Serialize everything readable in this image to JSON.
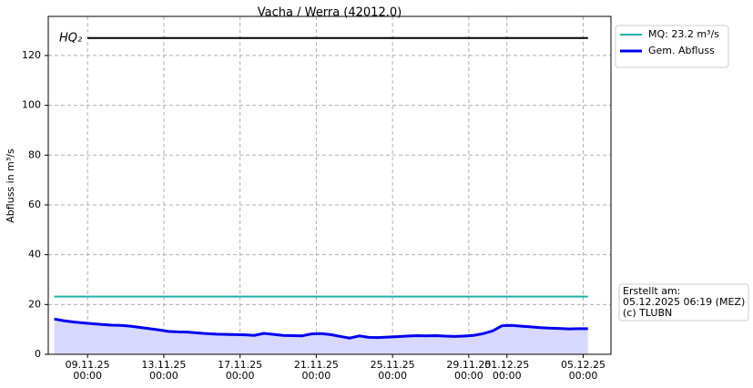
{
  "chart_data": {
    "type": "line",
    "title": "Vacha / Werra (42012.0)",
    "y_label": "Abfluss in m³/s",
    "ylim": [
      0,
      135.7
    ],
    "yticks": [
      0,
      20,
      40,
      60,
      80,
      100,
      120
    ],
    "xlim": [
      "06.11.25 22:30",
      "06.12.25 11:00"
    ],
    "xticks": [
      {
        "value": "09.11.25 00:00",
        "label": "09.11.25\n00:00"
      },
      {
        "value": "13.11.25 00:00",
        "label": "13.11.25\n00:00"
      },
      {
        "value": "17.11.25 00:00",
        "label": "17.11.25\n00:00"
      },
      {
        "value": "21.11.25 00:00",
        "label": "21.11.25\n00:00"
      },
      {
        "value": "25.11.25 00:00",
        "label": "25.11.25\n00:00"
      },
      {
        "value": "29.11.25 00:00",
        "label": "29.11.25\n00:00"
      },
      {
        "value": "01.12.25 00:00",
        "label": "01.12.25\n00:00"
      },
      {
        "value": "05.12.25 00:00",
        "label": "05.12.25\n00:00"
      }
    ],
    "grid": true,
    "legend": "outside-upper-right",
    "series": [
      {
        "name": "HQ₂",
        "color": "#000000",
        "legend": false,
        "x": [
          "09.11.25 00:00",
          "05.12.25 06:00"
        ],
        "values": [
          127,
          127
        ]
      },
      {
        "name": "MQ: 23.2 m³/s",
        "color": "#20b2aa",
        "x": [
          "07.11.25 06:00",
          "05.12.25 06:00"
        ],
        "values": [
          23.2,
          23.2
        ]
      },
      {
        "name": "Gem. Abfluss",
        "color": "#0000ee",
        "fill": "#d8d8ff",
        "x": [
          "07.11.25 06:00",
          "07.11.25 18:00",
          "08.11.25 06:00",
          "08.11.25 18:00",
          "09.11.25 06:00",
          "09.11.25 18:00",
          "10.11.25 06:00",
          "10.11.25 18:00",
          "11.11.25 06:00",
          "11.11.25 18:00",
          "12.11.25 06:00",
          "12.11.25 18:00",
          "13.11.25 06:00",
          "13.11.25 18:00",
          "14.11.25 06:00",
          "14.11.25 18:00",
          "15.11.25 06:00",
          "15.11.25 18:00",
          "16.11.25 06:00",
          "16.11.25 18:00",
          "17.11.25 06:00",
          "17.11.25 18:00",
          "18.11.25 06:00",
          "18.11.25 18:00",
          "19.11.25 06:00",
          "19.11.25 18:00",
          "20.11.25 06:00",
          "20.11.25 18:00",
          "21.11.25 06:00",
          "21.11.25 18:00",
          "22.11.25 06:00",
          "22.11.25 18:00",
          "23.11.25 06:00",
          "23.11.25 18:00",
          "24.11.25 06:00",
          "24.11.25 18:00",
          "25.11.25 06:00",
          "25.11.25 18:00",
          "26.11.25 06:00",
          "26.11.25 18:00",
          "27.11.25 06:00",
          "27.11.25 18:00",
          "28.11.25 06:00",
          "28.11.25 18:00",
          "29.11.25 06:00",
          "29.11.25 18:00",
          "30.11.25 06:00",
          "30.11.25 18:00",
          "01.12.25 06:00",
          "01.12.25 18:00",
          "02.12.25 06:00",
          "02.12.25 18:00",
          "03.12.25 06:00",
          "03.12.25 18:00",
          "04.12.25 06:00",
          "04.12.25 18:00",
          "05.12.25 06:00"
        ],
        "values": [
          14.2,
          13.5,
          13.0,
          12.6,
          12.3,
          12.0,
          11.7,
          11.6,
          11.3,
          10.8,
          10.3,
          9.8,
          9.2,
          9.0,
          8.9,
          8.6,
          8.3,
          8.1,
          8.0,
          7.9,
          7.8,
          7.6,
          8.4,
          8.0,
          7.6,
          7.5,
          7.4,
          8.2,
          8.3,
          7.9,
          7.2,
          6.5,
          7.4,
          6.8,
          6.7,
          6.9,
          7.1,
          7.3,
          7.5,
          7.4,
          7.5,
          7.3,
          7.2,
          7.3,
          7.6,
          8.3,
          9.4,
          11.5,
          11.6,
          11.3,
          11.0,
          10.7,
          10.5,
          10.4,
          10.2,
          10.3,
          10.3
        ]
      }
    ],
    "info": [
      "Erstellt am:",
      "05.12.2025 06:19 (MEZ)",
      "(c) TLUBN"
    ]
  }
}
